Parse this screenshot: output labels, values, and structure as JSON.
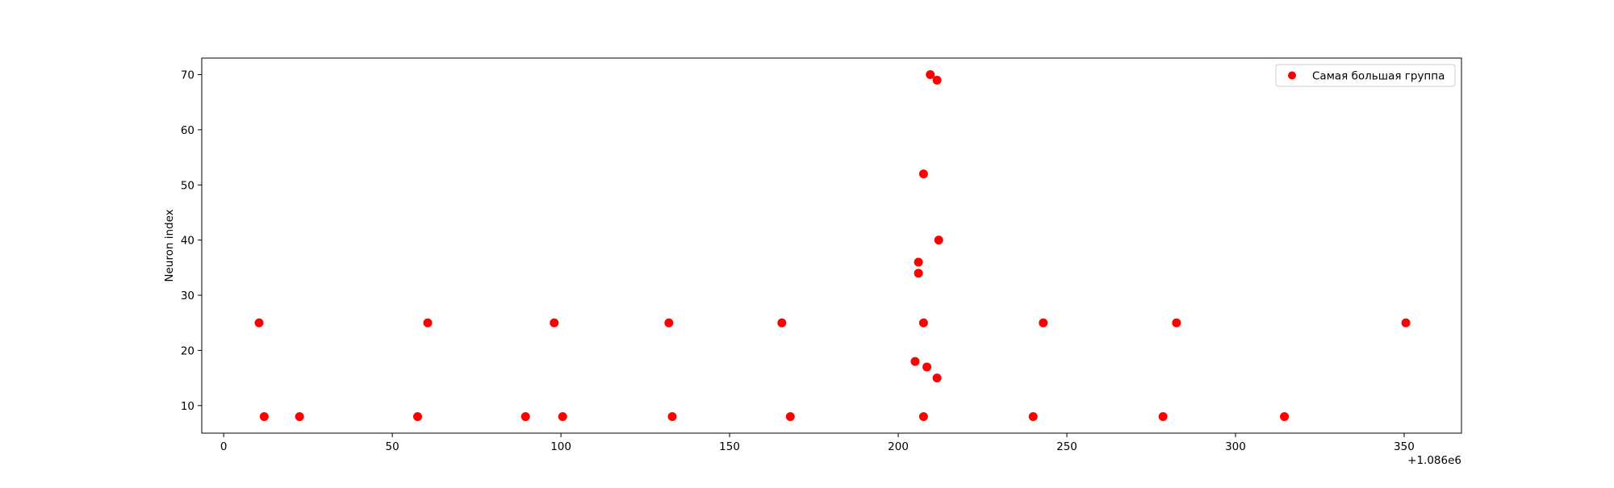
{
  "chart_data": {
    "type": "scatter",
    "title": "",
    "xlabel": "",
    "ylabel": "Neuron index",
    "x_offset_label": "+1.086e6",
    "xlim": [
      -6.5,
      367
    ],
    "ylim": [
      5,
      73
    ],
    "xticks": [
      0,
      50,
      100,
      150,
      200,
      250,
      300,
      350
    ],
    "yticks": [
      10,
      20,
      30,
      40,
      50,
      60,
      70
    ],
    "grid": false,
    "legend_position": "upper-right",
    "series": [
      {
        "name": "Самая большая группа",
        "color": "#ff0000",
        "marker": "circle",
        "points": [
          {
            "x": 10.5,
            "y": 25
          },
          {
            "x": 60.5,
            "y": 25
          },
          {
            "x": 98,
            "y": 25
          },
          {
            "x": 132,
            "y": 25
          },
          {
            "x": 165.5,
            "y": 25
          },
          {
            "x": 207.5,
            "y": 25
          },
          {
            "x": 243,
            "y": 25
          },
          {
            "x": 282.5,
            "y": 25
          },
          {
            "x": 350.5,
            "y": 25
          },
          {
            "x": 12,
            "y": 8
          },
          {
            "x": 22.5,
            "y": 8
          },
          {
            "x": 57.5,
            "y": 8
          },
          {
            "x": 89.5,
            "y": 8
          },
          {
            "x": 100.5,
            "y": 8
          },
          {
            "x": 133,
            "y": 8
          },
          {
            "x": 168,
            "y": 8
          },
          {
            "x": 207.5,
            "y": 8
          },
          {
            "x": 240,
            "y": 8
          },
          {
            "x": 278.5,
            "y": 8
          },
          {
            "x": 314.5,
            "y": 8
          },
          {
            "x": 205,
            "y": 18
          },
          {
            "x": 208.5,
            "y": 17
          },
          {
            "x": 211.5,
            "y": 15
          },
          {
            "x": 206,
            "y": 34
          },
          {
            "x": 206,
            "y": 36
          },
          {
            "x": 212,
            "y": 40
          },
          {
            "x": 207.5,
            "y": 52
          },
          {
            "x": 209.5,
            "y": 70
          },
          {
            "x": 211.5,
            "y": 69
          }
        ]
      }
    ]
  }
}
